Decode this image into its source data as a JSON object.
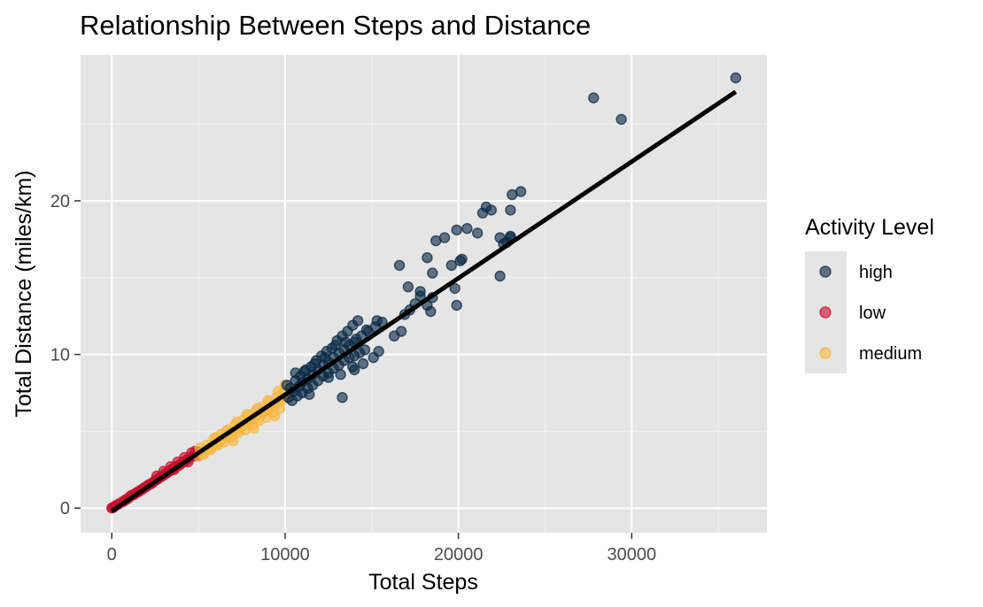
{
  "chart_data": {
    "type": "scatter",
    "title": "Relationship Between Steps and Distance",
    "xlabel": "Total Steps",
    "ylabel": "Total Distance (miles/km)",
    "xlim": [
      -1800,
      37800
    ],
    "ylim": [
      -1.6,
      29.5
    ],
    "x_ticks": [
      0,
      10000,
      20000,
      30000
    ],
    "x_tick_labels": [
      "0",
      "10000",
      "20000",
      "30000"
    ],
    "y_ticks": [
      0,
      10,
      20
    ],
    "y_tick_labels": [
      "0",
      "10",
      "20"
    ],
    "grid": true,
    "legend": {
      "title": "Activity Level",
      "placement": "right",
      "entries": [
        "high",
        "low",
        "medium"
      ]
    },
    "trend_line": {
      "x": [
        0,
        36000
      ],
      "y": [
        -0.2,
        27.1
      ],
      "color": "#000000"
    },
    "series": [
      {
        "name": "high",
        "color": "#0b2945",
        "points": [
          [
            10200,
            7.2
          ],
          [
            10500,
            7.6
          ],
          [
            10800,
            7.9
          ],
          [
            11000,
            8.2
          ],
          [
            11300,
            8.4
          ],
          [
            11600,
            8.7
          ],
          [
            11900,
            9.0
          ],
          [
            12200,
            9.3
          ],
          [
            12500,
            9.5
          ],
          [
            12800,
            9.8
          ],
          [
            13100,
            10.1
          ],
          [
            13400,
            10.3
          ],
          [
            13700,
            10.6
          ],
          [
            14000,
            10.8
          ],
          [
            14400,
            11.2
          ],
          [
            14800,
            11.5
          ],
          [
            15200,
            11.8
          ],
          [
            15600,
            12.1
          ],
          [
            10300,
            7.8
          ],
          [
            10600,
            8.3
          ],
          [
            10900,
            8.6
          ],
          [
            11200,
            9.0
          ],
          [
            11500,
            9.2
          ],
          [
            11800,
            9.6
          ],
          [
            12100,
            9.9
          ],
          [
            12400,
            10.2
          ],
          [
            12700,
            10.4
          ],
          [
            13000,
            10.9
          ],
          [
            13300,
            11.2
          ],
          [
            13600,
            11.5
          ],
          [
            13900,
            11.9
          ],
          [
            14200,
            12.2
          ],
          [
            10400,
            7.0
          ],
          [
            10700,
            7.3
          ],
          [
            11000,
            7.5
          ],
          [
            11300,
            7.8
          ],
          [
            11600,
            8.0
          ],
          [
            11900,
            8.3
          ],
          [
            12200,
            8.6
          ],
          [
            12500,
            8.8
          ],
          [
            12800,
            9.1
          ],
          [
            13100,
            9.3
          ],
          [
            13400,
            9.6
          ],
          [
            13700,
            9.8
          ],
          [
            14000,
            9.9
          ],
          [
            14300,
            10.1
          ],
          [
            14600,
            10.3
          ],
          [
            10100,
            8.0
          ],
          [
            10600,
            8.8
          ],
          [
            11100,
            8.9
          ],
          [
            11700,
            9.4
          ],
          [
            12300,
            9.8
          ],
          [
            12900,
            10.6
          ],
          [
            13500,
            10.8
          ],
          [
            14100,
            11.0
          ],
          [
            14700,
            11.6
          ],
          [
            15300,
            12.2
          ],
          [
            12500,
            8.5
          ],
          [
            13200,
            8.7
          ],
          [
            13900,
            9.2
          ],
          [
            14500,
            9.4
          ],
          [
            15100,
            9.8
          ],
          [
            15400,
            10.2
          ],
          [
            13300,
            7.2
          ],
          [
            14000,
            9.0
          ],
          [
            11400,
            7.4
          ],
          [
            16300,
            11.2
          ],
          [
            16700,
            11.5
          ],
          [
            16900,
            12.6
          ],
          [
            17200,
            12.9
          ],
          [
            17800,
            13.8
          ],
          [
            17500,
            13.3
          ],
          [
            18200,
            13.2
          ],
          [
            18400,
            12.8
          ],
          [
            17800,
            14.1
          ],
          [
            18500,
            13.7
          ],
          [
            16600,
            15.8
          ],
          [
            17100,
            14.4
          ],
          [
            18200,
            16.3
          ],
          [
            18500,
            15.3
          ],
          [
            18700,
            17.4
          ],
          [
            19200,
            17.6
          ],
          [
            19600,
            15.8
          ],
          [
            19800,
            14.3
          ],
          [
            20100,
            16.1
          ],
          [
            19900,
            13.2
          ],
          [
            19900,
            18.1
          ],
          [
            20200,
            16.2
          ],
          [
            20500,
            18.2
          ],
          [
            21100,
            17.9
          ],
          [
            21400,
            19.2
          ],
          [
            21600,
            19.6
          ],
          [
            21900,
            19.4
          ],
          [
            22400,
            17.6
          ],
          [
            22600,
            17.2
          ],
          [
            22800,
            17.3
          ],
          [
            23000,
            17.6
          ],
          [
            23000,
            17.7
          ],
          [
            23000,
            19.4
          ],
          [
            22400,
            15.1
          ],
          [
            23100,
            20.4
          ],
          [
            23600,
            20.6
          ],
          [
            27800,
            26.7
          ],
          [
            29400,
            25.3
          ],
          [
            36000,
            28.0
          ]
        ]
      },
      {
        "name": "low",
        "color": "#c8102e",
        "points": [
          [
            0,
            0
          ],
          [
            50,
            0.03
          ],
          [
            100,
            0.06
          ],
          [
            150,
            0.1
          ],
          [
            250,
            0.17
          ],
          [
            400,
            0.27
          ],
          [
            600,
            0.4
          ],
          [
            800,
            0.55
          ],
          [
            1000,
            0.7
          ],
          [
            1200,
            0.85
          ],
          [
            1400,
            0.98
          ],
          [
            1600,
            1.1
          ],
          [
            1800,
            1.25
          ],
          [
            2000,
            1.4
          ],
          [
            2200,
            1.55
          ],
          [
            2400,
            1.7
          ],
          [
            2600,
            1.85
          ],
          [
            2800,
            2.0
          ],
          [
            3000,
            2.15
          ],
          [
            3200,
            2.3
          ],
          [
            3400,
            2.45
          ],
          [
            3600,
            2.6
          ],
          [
            3800,
            2.75
          ],
          [
            4000,
            2.9
          ],
          [
            4200,
            3.05
          ],
          [
            4400,
            3.2
          ],
          [
            4600,
            3.35
          ],
          [
            4800,
            3.5
          ],
          [
            5000,
            3.65
          ],
          [
            700,
            0.45
          ],
          [
            1100,
            0.8
          ],
          [
            1500,
            1.05
          ],
          [
            1900,
            1.35
          ],
          [
            2300,
            1.6
          ],
          [
            2700,
            1.95
          ],
          [
            3100,
            2.25
          ],
          [
            3500,
            2.55
          ],
          [
            3900,
            2.8
          ],
          [
            4300,
            3.1
          ],
          [
            4700,
            3.4
          ],
          [
            900,
            0.6
          ],
          [
            1300,
            0.9
          ],
          [
            1700,
            1.2
          ],
          [
            2100,
            1.5
          ],
          [
            2500,
            1.8
          ],
          [
            2900,
            2.1
          ],
          [
            3300,
            2.4
          ],
          [
            3700,
            2.7
          ],
          [
            4100,
            3.0
          ],
          [
            4500,
            3.3
          ],
          [
            4900,
            3.55
          ],
          [
            2600,
            2.1
          ],
          [
            3000,
            2.4
          ],
          [
            3400,
            2.7
          ],
          [
            3800,
            3.0
          ],
          [
            4200,
            3.3
          ],
          [
            4600,
            3.6
          ],
          [
            5000,
            3.4
          ],
          [
            4800,
            3.7
          ],
          [
            3600,
            2.5
          ],
          [
            4400,
            3.0
          ]
        ]
      },
      {
        "name": "medium",
        "color": "#f5b841",
        "points": [
          [
            5000,
            3.4
          ],
          [
            5200,
            3.6
          ],
          [
            5400,
            3.7
          ],
          [
            5600,
            3.9
          ],
          [
            5800,
            4.0
          ],
          [
            6000,
            4.2
          ],
          [
            6200,
            4.3
          ],
          [
            6400,
            4.5
          ],
          [
            6600,
            4.6
          ],
          [
            6800,
            4.8
          ],
          [
            7000,
            4.9
          ],
          [
            7200,
            5.1
          ],
          [
            7400,
            5.2
          ],
          [
            7600,
            5.4
          ],
          [
            7800,
            5.5
          ],
          [
            8000,
            5.7
          ],
          [
            8200,
            5.8
          ],
          [
            8400,
            6.0
          ],
          [
            8600,
            6.1
          ],
          [
            8800,
            6.3
          ],
          [
            9000,
            6.4
          ],
          [
            9200,
            6.6
          ],
          [
            9400,
            6.7
          ],
          [
            9600,
            6.9
          ],
          [
            9800,
            7.0
          ],
          [
            10000,
            7.2
          ],
          [
            5100,
            3.9
          ],
          [
            5500,
            4.1
          ],
          [
            5900,
            4.5
          ],
          [
            6300,
            4.8
          ],
          [
            6700,
            5.1
          ],
          [
            7100,
            5.4
          ],
          [
            7500,
            5.7
          ],
          [
            7900,
            6.0
          ],
          [
            8300,
            6.3
          ],
          [
            8700,
            6.6
          ],
          [
            9100,
            6.9
          ],
          [
            9500,
            7.2
          ],
          [
            9900,
            7.5
          ],
          [
            5300,
            3.5
          ],
          [
            5700,
            3.8
          ],
          [
            6100,
            4.1
          ],
          [
            6500,
            4.3
          ],
          [
            6900,
            4.6
          ],
          [
            7300,
            4.9
          ],
          [
            7700,
            5.1
          ],
          [
            8100,
            5.4
          ],
          [
            8500,
            5.7
          ],
          [
            8900,
            5.9
          ],
          [
            9300,
            6.2
          ],
          [
            9700,
            6.5
          ],
          [
            6000,
            4.6
          ],
          [
            6600,
            5.0
          ],
          [
            7200,
            5.6
          ],
          [
            7800,
            6.1
          ],
          [
            8400,
            6.5
          ],
          [
            9000,
            7.0
          ],
          [
            9600,
            7.6
          ],
          [
            10000,
            8.0
          ],
          [
            8200,
            5.2
          ],
          [
            9400,
            6.0
          ],
          [
            7000,
            4.4
          ]
        ]
      }
    ]
  }
}
